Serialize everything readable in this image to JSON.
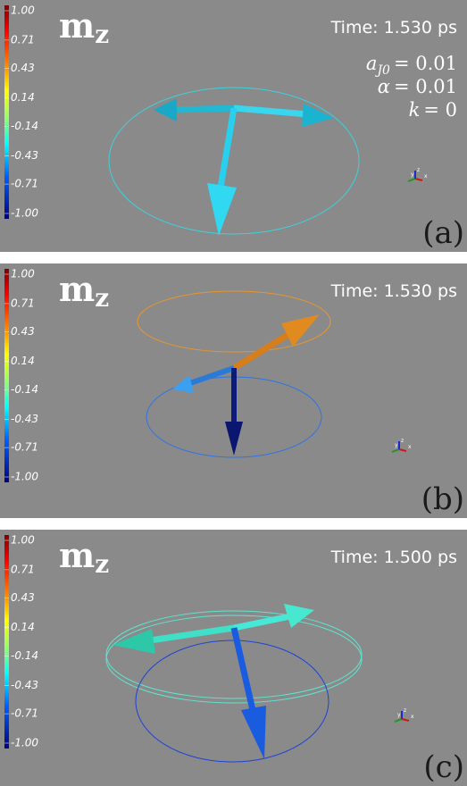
{
  "quantity": {
    "symbol": "m",
    "subscript": "z"
  },
  "colorbar_ticks": [
    {
      "value": 1,
      "label": "1.00"
    },
    0.71,
    0.43,
    0.14,
    -0.14,
    -0.43,
    -0.71,
    {
      "value": -1,
      "label": "-1.00"
    }
  ],
  "colorbar_range": [
    -1,
    1
  ],
  "axes_labels": [
    "y",
    "z",
    "x"
  ],
  "panels": [
    {
      "time": "Time: 1.530 ps",
      "label": "(a)",
      "params": [
        {
          "name": "a",
          "sub": "J0",
          "rhs": "= 0.01"
        },
        {
          "name": "α",
          "rhs": "= 0.01"
        },
        {
          "name": "k",
          "rhs": "= 0"
        }
      ]
    },
    {
      "time": "Time: 1.530 ps",
      "label": "(b)"
    },
    {
      "time": "Time: 1.500 ps",
      "label": "(c)"
    }
  ]
}
